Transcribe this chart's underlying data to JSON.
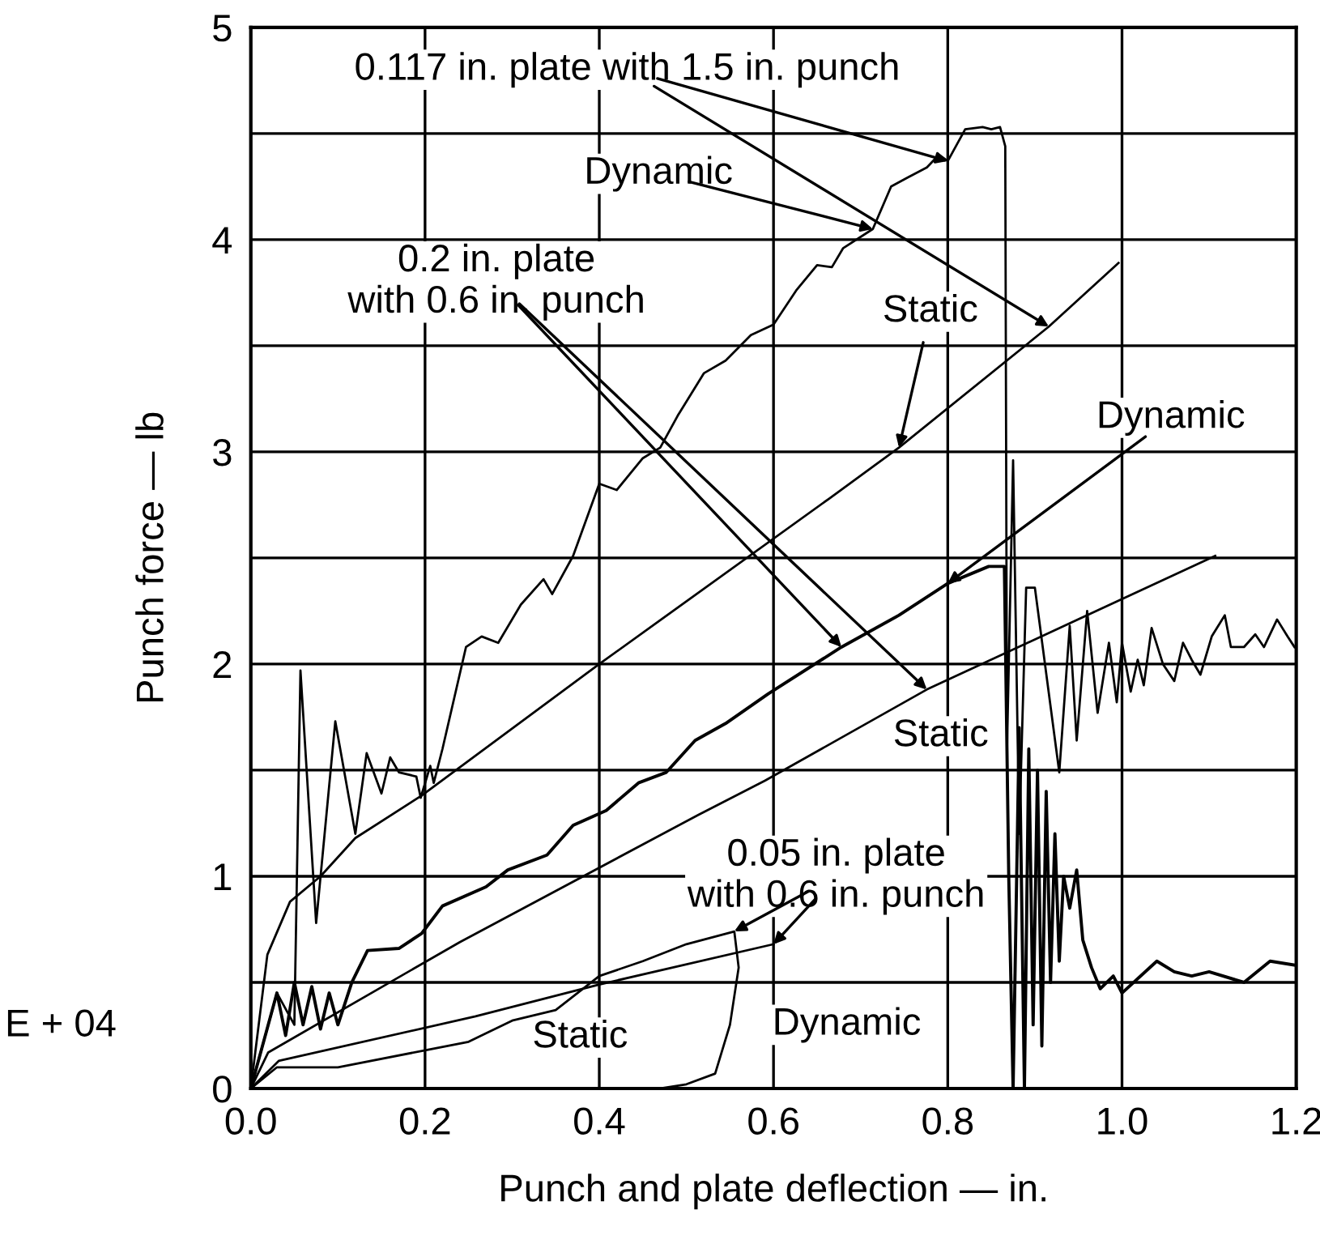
{
  "chart_data": {
    "type": "line",
    "xlabel": "Punch and plate deflection — in.",
    "ylabel": "Punch force — lb",
    "xlim": [
      0,
      1.2
    ],
    "ylim": [
      0,
      5
    ],
    "xticks": [
      {
        "value": 0,
        "label": "0.0"
      },
      {
        "value": 0.2,
        "label": "0.2"
      },
      {
        "value": 0.4,
        "label": "0.4"
      },
      {
        "value": 0.6,
        "label": "0.6"
      },
      {
        "value": 0.8,
        "label": "0.8"
      },
      {
        "value": 1.0,
        "label": "1.0"
      },
      {
        "value": 1.2,
        "label": "1.2"
      }
    ],
    "yticks": [
      0,
      {
        "value": 0.5,
        "label": null
      },
      1,
      {
        "value": 1.5,
        "label": null
      },
      2,
      {
        "value": 2.5,
        "label": null
      },
      3,
      {
        "value": 3.5,
        "label": null
      },
      4,
      {
        "value": 4.5,
        "label": null
      },
      5
    ],
    "grid": true,
    "marker": "none",
    "line_style": "solid",
    "series": [
      {
        "color": "#000000",
        "x": [
          0,
          0.019,
          0.045,
          0.08,
          0.12,
          0.196,
          0.4,
          0.664,
          0.744,
          0.916,
          0.996
        ],
        "values": [
          0,
          0.63,
          0.88,
          1.0,
          1.18,
          1.38,
          2.0,
          2.78,
          3.02,
          3.59,
          3.89
        ]
      },
      {
        "color": "#000000",
        "x": [
          0,
          0.03,
          0.05,
          0.057,
          0.075,
          0.097,
          0.12,
          0.133,
          0.15,
          0.16,
          0.17,
          0.19,
          0.195,
          0.206,
          0.21,
          0.22,
          0.247,
          0.265,
          0.284,
          0.31,
          0.336,
          0.346,
          0.37,
          0.4,
          0.42,
          0.45,
          0.47,
          0.49,
          0.52,
          0.545,
          0.574,
          0.6,
          0.626,
          0.65,
          0.667,
          0.68,
          0.714,
          0.735,
          0.744,
          0.753,
          0.776,
          0.79,
          0.8,
          0.82,
          0.84,
          0.85,
          0.86,
          0.866,
          0.868,
          0.875,
          0.882,
          0.89,
          0.9,
          0.928,
          0.94,
          0.948,
          0.96,
          0.972,
          0.985,
          0.994,
          1.0,
          1.01,
          1.018,
          1.025,
          1.034,
          1.047,
          1.06,
          1.07,
          1.08,
          1.09,
          1.103,
          1.118,
          1.125,
          1.14,
          1.153,
          1.163,
          1.178,
          1.19,
          1.198
        ],
        "values": [
          0,
          0.45,
          0.3,
          1.97,
          0.78,
          1.73,
          1.2,
          1.58,
          1.39,
          1.56,
          1.49,
          1.47,
          1.37,
          1.52,
          1.44,
          1.6,
          2.08,
          2.13,
          2.1,
          2.28,
          2.4,
          2.33,
          2.51,
          2.85,
          2.82,
          2.97,
          3.02,
          3.17,
          3.37,
          3.43,
          3.55,
          3.6,
          3.76,
          3.88,
          3.87,
          3.96,
          4.05,
          4.25,
          4.27,
          4.29,
          4.34,
          4.4,
          4.37,
          4.52,
          4.53,
          4.52,
          4.53,
          4.44,
          1.6,
          2.96,
          1.2,
          2.36,
          2.36,
          1.49,
          2.18,
          1.64,
          2.25,
          1.77,
          2.1,
          1.82,
          2.1,
          1.87,
          2.02,
          1.9,
          2.17,
          2.0,
          1.92,
          2.1,
          2.02,
          1.95,
          2.13,
          2.23,
          2.08,
          2.08,
          2.14,
          2.08,
          2.21,
          2.13,
          2.08
        ]
      },
      {
        "color": "#000000",
        "x": [
          0,
          0.02,
          0.24,
          0.514,
          0.59,
          0.776,
          1.107
        ],
        "values": [
          0,
          0.17,
          0.69,
          1.29,
          1.45,
          1.88,
          2.51
        ]
      },
      {
        "color": "#000000",
        "x": [
          0,
          0.03,
          0.04,
          0.05,
          0.06,
          0.07,
          0.08,
          0.09,
          0.1,
          0.116,
          0.134,
          0.17,
          0.196,
          0.22,
          0.27,
          0.295,
          0.34,
          0.37,
          0.408,
          0.445,
          0.477,
          0.51,
          0.545,
          0.594,
          0.678,
          0.744,
          0.8,
          0.847,
          0.865,
          0.87,
          0.875,
          0.882,
          0.888,
          0.893,
          0.898,
          0.903,
          0.908,
          0.913,
          0.918,
          0.923,
          0.928,
          0.933,
          0.94,
          0.948,
          0.955,
          0.965,
          0.975,
          0.99,
          1.0,
          1.04,
          1.06,
          1.08,
          1.1,
          1.14,
          1.17,
          1.2
        ],
        "values": [
          0,
          0.45,
          0.25,
          0.5,
          0.3,
          0.48,
          0.28,
          0.45,
          0.3,
          0.5,
          0.65,
          0.66,
          0.73,
          0.86,
          0.95,
          1.03,
          1.1,
          1.24,
          1.31,
          1.44,
          1.49,
          1.64,
          1.72,
          1.86,
          2.08,
          2.23,
          2.38,
          2.46,
          2.46,
          1.0,
          0,
          1.7,
          0,
          1.6,
          0.3,
          1.5,
          0.2,
          1.4,
          0.5,
          1.2,
          0.6,
          1.0,
          0.85,
          1.03,
          0.7,
          0.57,
          0.47,
          0.53,
          0.45,
          0.6,
          0.55,
          0.53,
          0.55,
          0.5,
          0.6,
          0.58
        ]
      },
      {
        "color": "#000000",
        "x": [
          0,
          0.032,
          0.258,
          0.4,
          0.6
        ],
        "values": [
          0,
          0.13,
          0.34,
          0.49,
          0.68
        ]
      },
      {
        "color": "#000000",
        "x": [
          0,
          0.03,
          0.1,
          0.2,
          0.25,
          0.3,
          0.35,
          0.4,
          0.45,
          0.5,
          0.555,
          0.56,
          0.55,
          0.533,
          0.5,
          0.47
        ],
        "values": [
          0,
          0.1,
          0.1,
          0.18,
          0.22,
          0.32,
          0.37,
          0.53,
          0.6,
          0.68,
          0.74,
          0.57,
          0.3,
          0.07,
          0.02,
          0
        ]
      }
    ],
    "annotations": [
      {
        "text": "0.117 in. plate with 1.5 in. punch",
        "x": 0.8,
        "y": 4.37
      },
      {
        "text": "Dynamic",
        "x": 0.714,
        "y": 4.05
      },
      {
        "text": "0.2 in. plate\nwith 0.6 in. punch",
        "x": 0.678,
        "y": 2.08
      },
      {
        "text": "Static",
        "x": 0.744,
        "y": 3.02
      },
      {
        "text": "Dynamic",
        "x": 0.8,
        "y": 2.38
      },
      "Static",
      {
        "text": "0.05 in. plate\nwith 0.6 in. punch",
        "x": 0.555,
        "y": 0.74
      },
      "Static",
      "Dynamic",
      "E + 04"
    ]
  }
}
